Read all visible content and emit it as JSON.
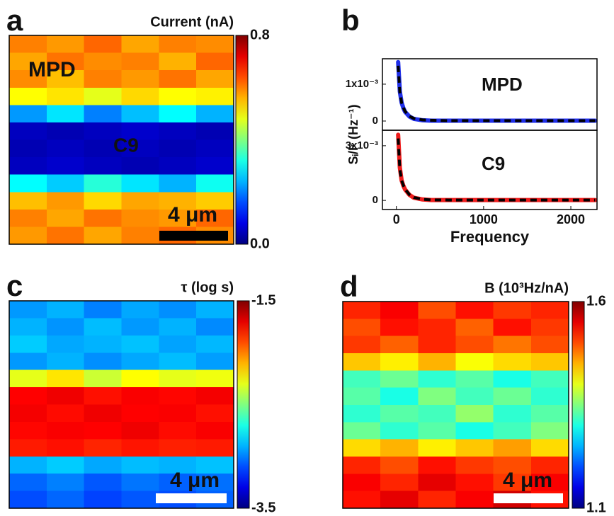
{
  "chart_data": [
    {
      "type": "heatmap",
      "label": "a",
      "title": "Current (nA)",
      "clim": [
        0,
        0.8
      ],
      "cticks": [
        {
          "value": 0,
          "label": "0.0"
        },
        0.8
      ],
      "annotations": [
        {
          "text": "MPD",
          "color": "#1a1a1a"
        },
        {
          "text": "C9",
          "color": "#ffffff"
        }
      ],
      "scalebar": "4 μm",
      "scalebar_color": "#000000",
      "z": [
        [
          0.6,
          0.58,
          0.62,
          0.57,
          0.6,
          0.59
        ],
        [
          0.57,
          0.61,
          0.59,
          0.6,
          0.56,
          0.62
        ],
        [
          0.59,
          0.55,
          0.6,
          0.58,
          0.61,
          0.57
        ],
        [
          0.5,
          0.52,
          0.48,
          0.53,
          0.5,
          0.51
        ],
        [
          0.22,
          0.28,
          0.2,
          0.25,
          0.3,
          0.24
        ],
        [
          0.05,
          0.04,
          0.05,
          0.06,
          0.05,
          0.04
        ],
        [
          0.04,
          0.05,
          0.04,
          0.05,
          0.04,
          0.05
        ],
        [
          0.05,
          0.06,
          0.05,
          0.04,
          0.05,
          0.06
        ],
        [
          0.3,
          0.26,
          0.33,
          0.28,
          0.24,
          0.31
        ],
        [
          0.55,
          0.58,
          0.53,
          0.57,
          0.56,
          0.54
        ],
        [
          0.6,
          0.57,
          0.61,
          0.59,
          0.58,
          0.62
        ],
        [
          0.58,
          0.61,
          0.57,
          0.6,
          0.62,
          0.59
        ]
      ]
    },
    {
      "type": "line",
      "label": "b",
      "ylabel": "Sᵢ/I² (Hz⁻¹)",
      "x": [
        20,
        40,
        60,
        80,
        100,
        150,
        200,
        300,
        400,
        600,
        800,
        1000,
        1500,
        2000,
        2280
      ],
      "xlim": [
        -160,
        2300
      ],
      "ylim": [
        -0.00025,
        0.00169
      ],
      "yticks": [
        0,
        {
          "value": 0.001,
          "label": "1x10⁻³"
        }
      ],
      "series": [
        {
          "name": "MPD",
          "color": "#1f2ee8",
          "values": [
            0.0016,
            0.0008,
            0.0005,
            0.00035,
            0.00025,
            0.00012,
            6e-05,
            2e-05,
            1e-05,
            1e-05,
            1e-05,
            1e-05,
            1e-05,
            1e-05,
            1e-05
          ]
        },
        {
          "color": "#000000",
          "dash": true,
          "values": [
            0.0015,
            0.00078,
            0.0005,
            0.00036,
            0.00026,
            0.00013,
            7e-05,
            3e-05,
            2e-05,
            1e-05,
            1e-05,
            1e-05,
            1e-05,
            1e-05,
            1e-05
          ]
        }
      ]
    },
    {
      "type": "line",
      "xlabel": "Frequency",
      "x": [
        20,
        40,
        60,
        80,
        100,
        150,
        200,
        300,
        400,
        600,
        800,
        1000,
        1500,
        2000,
        2280
      ],
      "xlim": [
        -160,
        2300
      ],
      "ylim": [
        -0.0005,
        0.00385
      ],
      "xticks": [
        0,
        1000,
        2000
      ],
      "yticks": [
        0,
        {
          "value": 0.003,
          "label": "3x10⁻³"
        }
      ],
      "series": [
        {
          "name": "C9",
          "color": "#ee1c1c",
          "values": [
            0.0036,
            0.0018,
            0.0011,
            0.0008,
            0.0006,
            0.0003,
            0.00015,
            5e-05,
            2e-05,
            2e-05,
            2e-05,
            2e-05,
            2e-05,
            2e-05,
            2e-05
          ]
        },
        {
          "color": "#000000",
          "dash": true,
          "values": [
            0.0034,
            0.0017,
            0.0011,
            0.00082,
            0.00062,
            0.00031,
            0.00016,
            6e-05,
            3e-05,
            2e-05,
            2e-05,
            2e-05,
            2e-05,
            2e-05,
            2e-05
          ]
        }
      ]
    },
    {
      "type": "heatmap",
      "label": "c",
      "title": "τ (log s)",
      "clim": [
        -3.5,
        -1.5
      ],
      "cticks": [
        -3.5,
        -1.5
      ],
      "annotations": [],
      "scalebar": "4 μm",
      "scalebar_color": "#ffffff",
      "z": [
        [
          -2.95,
          -2.9,
          -3.0,
          -2.92,
          -2.97,
          -2.9
        ],
        [
          -2.9,
          -2.96,
          -2.88,
          -2.95,
          -2.9,
          -2.98
        ],
        [
          -2.85,
          -2.92,
          -2.9,
          -2.87,
          -2.93,
          -2.89
        ],
        [
          -2.95,
          -2.9,
          -2.97,
          -2.92,
          -2.88,
          -2.94
        ],
        [
          -2.3,
          -2.2,
          -2.35,
          -2.25,
          -2.3,
          -2.28
        ],
        [
          -1.75,
          -1.72,
          -1.78,
          -1.74,
          -1.76,
          -1.73
        ],
        [
          -1.73,
          -1.77,
          -1.72,
          -1.75,
          -1.74,
          -1.78
        ],
        [
          -1.76,
          -1.74,
          -1.75,
          -1.72,
          -1.77,
          -1.74
        ],
        [
          -1.8,
          -1.78,
          -1.82,
          -1.79,
          -1.81,
          -1.8
        ],
        [
          -2.9,
          -2.85,
          -2.92,
          -2.88,
          -2.9,
          -2.87
        ],
        [
          -3.05,
          -3.0,
          -3.08,
          -3.02,
          -3.06,
          -3.03
        ],
        [
          -3.1,
          -3.05,
          -3.12,
          -3.08,
          -3.1,
          -3.06
        ]
      ]
    },
    {
      "type": "heatmap",
      "label": "d",
      "title": "B (10³Hz/nA)",
      "clim": [
        1.1,
        1.6
      ],
      "cticks": [
        1.1,
        1.6
      ],
      "annotations": [],
      "scalebar": "4 μm",
      "scalebar_color": "#ffffff",
      "z": [
        [
          1.52,
          1.54,
          1.5,
          1.53,
          1.51,
          1.52
        ],
        [
          1.5,
          1.53,
          1.52,
          1.49,
          1.53,
          1.51
        ],
        [
          1.51,
          1.49,
          1.52,
          1.5,
          1.48,
          1.5
        ],
        [
          1.44,
          1.42,
          1.45,
          1.41,
          1.43,
          1.44
        ],
        [
          1.32,
          1.34,
          1.31,
          1.33,
          1.3,
          1.32
        ],
        [
          1.33,
          1.3,
          1.35,
          1.32,
          1.34,
          1.31
        ],
        [
          1.31,
          1.33,
          1.32,
          1.36,
          1.31,
          1.33
        ],
        [
          1.34,
          1.31,
          1.33,
          1.3,
          1.32,
          1.35
        ],
        [
          1.43,
          1.45,
          1.42,
          1.44,
          1.46,
          1.43
        ],
        [
          1.52,
          1.5,
          1.53,
          1.51,
          1.5,
          1.52
        ],
        [
          1.54,
          1.52,
          1.55,
          1.53,
          1.51,
          1.54
        ],
        [
          1.53,
          1.55,
          1.52,
          1.54,
          1.56,
          1.53
        ]
      ]
    }
  ]
}
